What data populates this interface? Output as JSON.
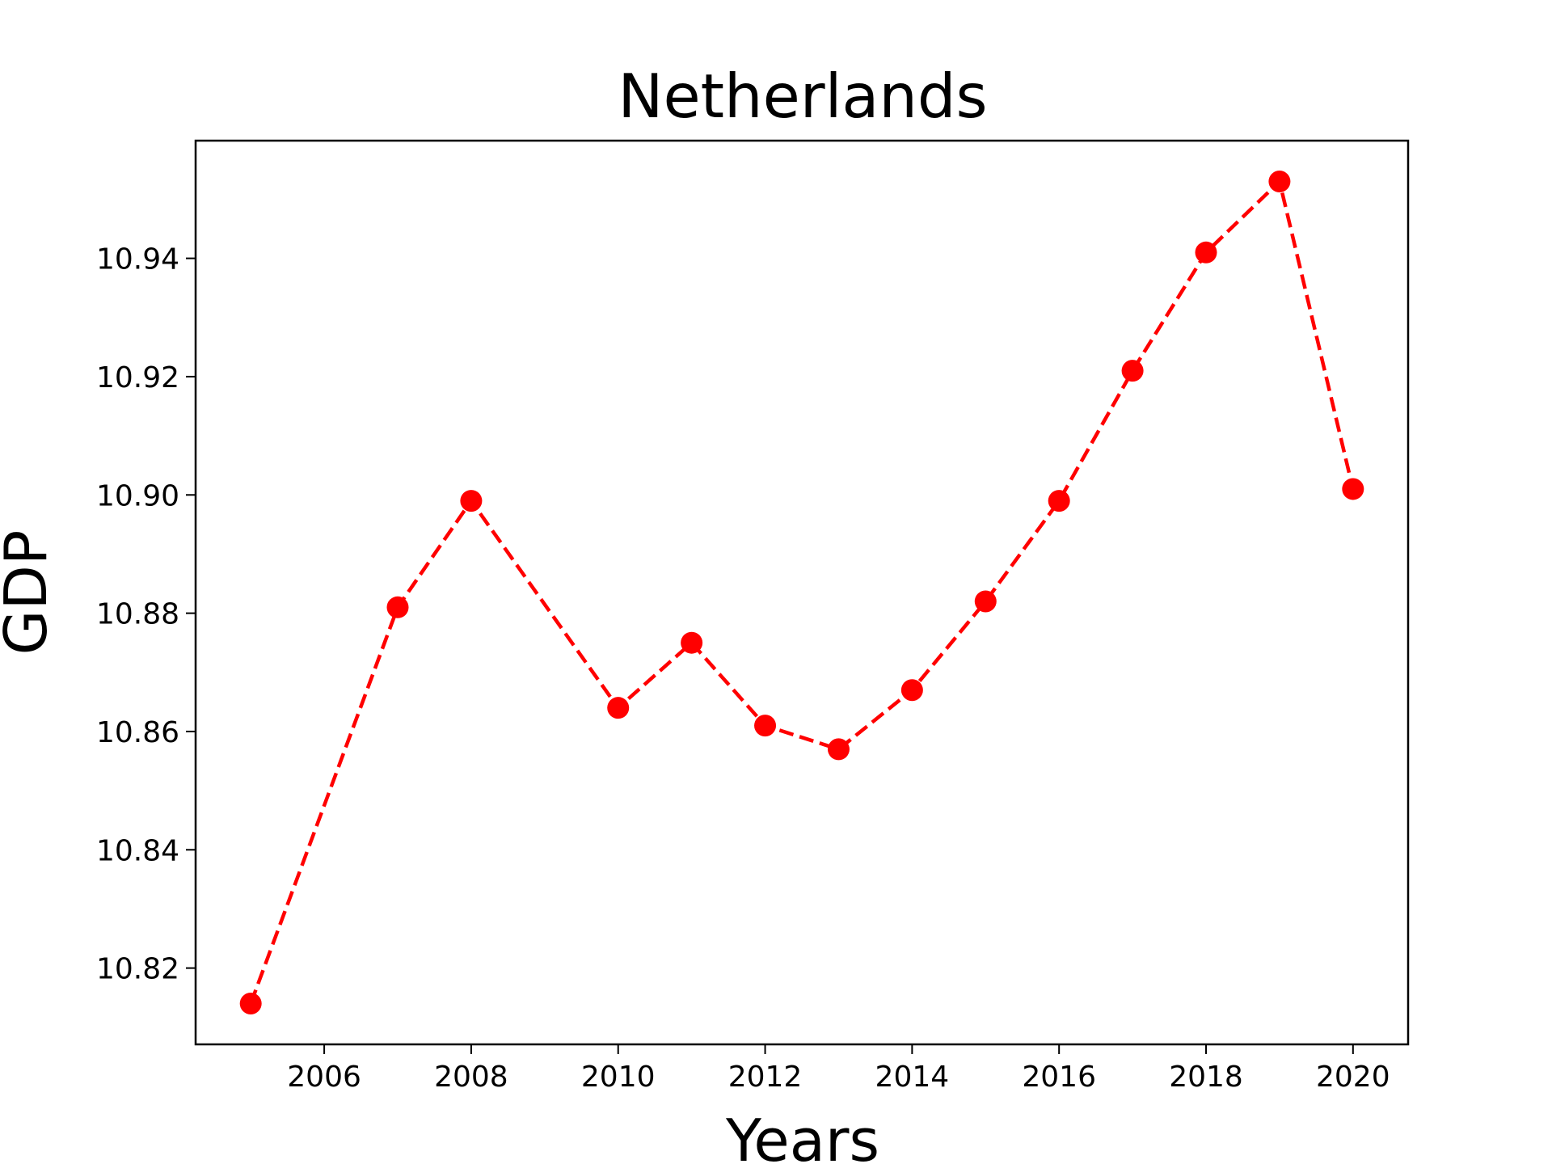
{
  "chart_data": {
    "type": "line",
    "title": "Netherlands",
    "xlabel": "Years",
    "ylabel": "GDP",
    "x": [
      2005,
      2007,
      2008,
      2010,
      2011,
      2012,
      2013,
      2014,
      2015,
      2016,
      2017,
      2018,
      2019,
      2020
    ],
    "series": [
      {
        "values": [
          10.814,
          10.881,
          10.899,
          10.864,
          10.875,
          10.861,
          10.857,
          10.867,
          10.882,
          10.899,
          10.921,
          10.941,
          10.953,
          10.901
        ],
        "color": "#ff0000",
        "line_style": "dashed",
        "marker": "circle"
      }
    ],
    "xticks": [
      "2006",
      "2008",
      "2010",
      "2012",
      "2014",
      "2016",
      "2018",
      "2020"
    ],
    "yticks": [
      "10.82",
      "10.84",
      "10.86",
      "10.88",
      "10.90",
      "10.92",
      "10.94"
    ],
    "xlim": [
      2004.25,
      2020.75
    ],
    "ylim": [
      10.8071,
      10.9599
    ],
    "grid": false
  }
}
